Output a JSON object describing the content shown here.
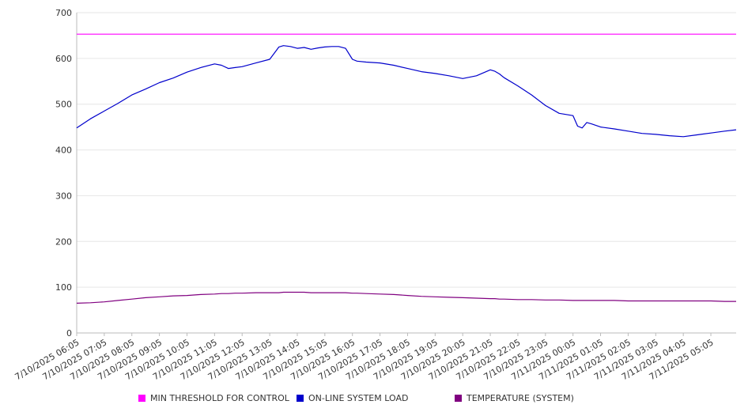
{
  "chart_data": {
    "type": "line",
    "title": "",
    "xlabel": "",
    "ylabel": "",
    "ylim": [
      0,
      700
    ],
    "y_ticks": [
      0,
      100,
      200,
      300,
      400,
      500,
      600,
      700
    ],
    "x_tick_labels": [
      "7/10/2025 06:05",
      "7/10/2025 07:05",
      "7/10/2025 08:05",
      "7/10/2025 09:05",
      "7/10/2025 10:05",
      "7/10/2025 11:05",
      "7/10/2025 12:05",
      "7/10/2025 13:05",
      "7/10/2025 14:05",
      "7/10/2025 15:05",
      "7/10/2025 16:05",
      "7/10/2025 17:05",
      "7/10/2025 18:05",
      "7/10/2025 19:05",
      "7/10/2025 20:05",
      "7/10/2025 21:05",
      "7/10/2025 22:05",
      "7/10/2025 23:05",
      "7/11/2025 00:05",
      "7/11/2025 01:05",
      "7/11/2025 02:05",
      "7/11/2025 03:05",
      "7/11/2025 04:05",
      "7/11/2025 05:05"
    ],
    "x": [
      "7/10/2025 06:05",
      "7/10/2025 06:35",
      "7/10/2025 07:05",
      "7/10/2025 07:35",
      "7/10/2025 08:05",
      "7/10/2025 08:35",
      "7/10/2025 09:05",
      "7/10/2025 09:35",
      "7/10/2025 10:05",
      "7/10/2025 10:35",
      "7/10/2025 11:05",
      "7/10/2025 11:20",
      "7/10/2025 11:35",
      "7/10/2025 11:50",
      "7/10/2025 12:05",
      "7/10/2025 12:35",
      "7/10/2025 13:05",
      "7/10/2025 13:20",
      "7/10/2025 13:25",
      "7/10/2025 13:35",
      "7/10/2025 13:50",
      "7/10/2025 14:05",
      "7/10/2025 14:20",
      "7/10/2025 14:35",
      "7/10/2025 14:50",
      "7/10/2025 15:05",
      "7/10/2025 15:20",
      "7/10/2025 15:35",
      "7/10/2025 15:50",
      "7/10/2025 16:05",
      "7/10/2025 16:15",
      "7/10/2025 16:35",
      "7/10/2025 17:05",
      "7/10/2025 17:35",
      "7/10/2025 18:05",
      "7/10/2025 18:35",
      "7/10/2025 19:05",
      "7/10/2025 19:35",
      "7/10/2025 20:05",
      "7/10/2025 20:35",
      "7/10/2025 21:05",
      "7/10/2025 21:15",
      "7/10/2025 21:25",
      "7/10/2025 21:35",
      "7/10/2025 22:05",
      "7/10/2025 22:35",
      "7/10/2025 23:05",
      "7/10/2025 23:35",
      "7/11/2025 00:05",
      "7/11/2025 00:15",
      "7/11/2025 00:25",
      "7/11/2025 00:35",
      "7/11/2025 00:45",
      "7/11/2025 01:05",
      "7/11/2025 01:35",
      "7/11/2025 02:05",
      "7/11/2025 02:35",
      "7/11/2025 03:05",
      "7/11/2025 03:35",
      "7/11/2025 04:05",
      "7/11/2025 04:35",
      "7/11/2025 05:05",
      "7/11/2025 05:35",
      "7/11/2025 06:00"
    ],
    "series": [
      {
        "name": "MIN THRESHOLD FOR CONTROL",
        "color": "#ff00ff",
        "values": [
          653,
          653,
          653,
          653,
          653,
          653,
          653,
          653,
          653,
          653,
          653,
          653,
          653,
          653,
          653,
          653,
          653,
          653,
          653,
          653,
          653,
          653,
          653,
          653,
          653,
          653,
          653,
          653,
          653,
          653,
          653,
          653,
          653,
          653,
          653,
          653,
          653,
          653,
          653,
          653,
          653,
          653,
          653,
          653,
          653,
          653,
          653,
          653,
          653,
          653,
          653,
          653,
          653,
          653,
          653,
          653,
          653,
          653,
          653,
          653,
          653,
          653,
          653,
          653
        ]
      },
      {
        "name": "ON-LINE SYSTEM LOAD",
        "color": "#0000cc",
        "values": [
          448,
          468,
          485,
          502,
          520,
          533,
          547,
          557,
          570,
          580,
          588,
          585,
          578,
          580,
          582,
          590,
          598,
          618,
          625,
          628,
          626,
          622,
          624,
          620,
          623,
          625,
          626,
          626,
          622,
          598,
          594,
          592,
          590,
          585,
          578,
          571,
          567,
          562,
          556,
          562,
          575,
          572,
          566,
          558,
          540,
          520,
          497,
          480,
          475,
          452,
          448,
          460,
          457,
          450,
          446,
          441,
          436,
          434,
          431,
          429,
          433,
          437,
          441,
          444
        ]
      },
      {
        "name": "TEMPERATURE (SYSTEM)",
        "color": "#800080",
        "values": [
          65,
          66,
          68,
          71,
          74,
          77,
          79,
          81,
          82,
          84,
          85,
          86,
          86,
          87,
          87,
          88,
          88,
          88,
          88,
          89,
          89,
          89,
          89,
          88,
          88,
          88,
          88,
          88,
          88,
          87,
          87,
          86,
          85,
          84,
          82,
          80,
          79,
          78,
          77,
          76,
          75,
          75,
          74,
          74,
          73,
          73,
          72,
          72,
          71,
          71,
          71,
          71,
          71,
          71,
          71,
          70,
          70,
          70,
          70,
          70,
          70,
          70,
          69,
          69
        ]
      }
    ],
    "legend_position": "bottom",
    "grid": true
  },
  "legend": {
    "items": [
      {
        "label": "MIN THRESHOLD FOR CONTROL",
        "color": "#ff00ff"
      },
      {
        "label": "ON-LINE SYSTEM LOAD",
        "color": "#0000cc"
      },
      {
        "label": "TEMPERATURE (SYSTEM)",
        "color": "#800080"
      }
    ]
  }
}
